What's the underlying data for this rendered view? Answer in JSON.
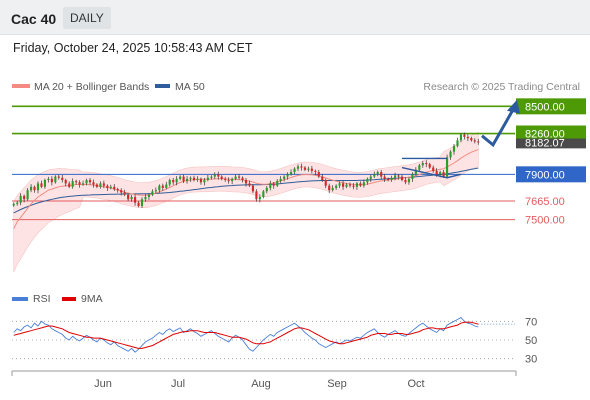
{
  "header": {
    "instrument": "Cac 40",
    "period_tab": "DAILY",
    "datetime": "Friday, October 24, 2025 10:58:43 AM CET"
  },
  "legend": {
    "items": [
      {
        "label": "MA 20 + Bollinger Bands",
        "color": "#f28b82"
      },
      {
        "label": "MA 50",
        "color": "#2f5d9b"
      }
    ],
    "credit": "Research © 2025 Trading Central"
  },
  "rsi_legend": {
    "items": [
      {
        "label": "RSI",
        "color": "#4a7fd6"
      },
      {
        "label": "9MA",
        "color": "#e00000"
      }
    ]
  },
  "colors": {
    "resistance": "#4d9a06",
    "pivot": "#2f66c8",
    "support": "#e35d5d",
    "candle_up": "#2a9d2a",
    "candle_down": "#d62828",
    "band_fill": "#fde3e3",
    "arrow": "#2b5b9e"
  },
  "chart_data": [
    {
      "type": "candlestick",
      "ylim": [
        6950,
        8600
      ],
      "months": [
        "Jun",
        "Jul",
        "Aug",
        "Sep",
        "Oct"
      ],
      "levels": [
        {
          "value": 8500,
          "label": "8500.00",
          "kind": "resistance"
        },
        {
          "value": 8260,
          "label": "8260.00",
          "kind": "resistance"
        },
        {
          "value": 7900,
          "label": "7900.00",
          "kind": "pivot"
        },
        {
          "value": 7665,
          "label": "7665.00",
          "kind": "support"
        },
        {
          "value": 7500,
          "label": "7500.00",
          "kind": "support"
        }
      ],
      "current_price_label": "8182.07",
      "series": [
        {
          "name": "Close",
          "values": [
            7640,
            7650,
            7710,
            7680,
            7760,
            7790,
            7760,
            7820,
            7790,
            7850,
            7860,
            7830,
            7880,
            7870,
            7850,
            7820,
            7790,
            7840,
            7830,
            7810,
            7820,
            7850,
            7830,
            7810,
            7790,
            7820,
            7800,
            7780,
            7790,
            7770,
            7760,
            7740,
            7720,
            7680,
            7700,
            7650,
            7620,
            7680,
            7700,
            7720,
            7750,
            7760,
            7800,
            7780,
            7810,
            7850,
            7830,
            7860,
            7880,
            7840,
            7860,
            7870,
            7850,
            7860,
            7830,
            7850,
            7870,
            7880,
            7900,
            7880,
            7860,
            7850,
            7840,
            7860,
            7880,
            7870,
            7850,
            7820,
            7800,
            7750,
            7680,
            7700,
            7750,
            7780,
            7820,
            7800,
            7840,
            7860,
            7880,
            7900,
            7920,
            7950,
            7970,
            7960,
            7940,
            7950,
            7930,
            7920,
            7880,
            7850,
            7800,
            7760,
            7780,
            7800,
            7820,
            7790,
            7810,
            7800,
            7790,
            7820,
            7800,
            7830,
            7860,
            7880,
            7900,
            7920,
            7880,
            7860,
            7850,
            7870,
            7890,
            7880,
            7850,
            7830,
            7860,
            7900,
            7940,
            7980,
            8000,
            7990,
            7960,
            7930,
            7900,
            7920,
            7880,
            8050,
            8100,
            8150,
            8200,
            8250,
            8230,
            8220,
            8200,
            8190,
            8182
          ]
        },
        {
          "name": "MA 20",
          "values": [
            7420,
            7480,
            7520,
            7560,
            7600,
            7640,
            7670,
            7700,
            7720,
            7740,
            7760,
            7770,
            7780,
            7790,
            7795,
            7800,
            7800,
            7805,
            7810,
            7810,
            7810,
            7810,
            7808,
            7805,
            7800,
            7795,
            7790,
            7785,
            7778,
            7770,
            7762,
            7752,
            7742,
            7735,
            7728,
            7722,
            7718,
            7716,
            7716,
            7720,
            7726,
            7734,
            7745,
            7758,
            7770,
            7785,
            7800,
            7815,
            7828,
            7838,
            7845,
            7850,
            7853,
            7855,
            7856,
            7856,
            7857,
            7858,
            7860,
            7861,
            7861,
            7860,
            7858,
            7856,
            7855,
            7853,
            7850,
            7846,
            7840,
            7832,
            7822,
            7815,
            7812,
            7813,
            7818,
            7825,
            7833,
            7842,
            7852,
            7862,
            7872,
            7882,
            7890,
            7896,
            7898,
            7898,
            7896,
            7892,
            7886,
            7878,
            7868,
            7858,
            7848,
            7840,
            7832,
            7826,
            7820,
            7815,
            7810,
            7808,
            7808,
            7810,
            7814,
            7820,
            7828,
            7836,
            7842,
            7846,
            7850,
            7854,
            7858,
            7862,
            7866,
            7870,
            7874,
            7880,
            7888,
            7898,
            7910,
            7920,
            7928,
            7934,
            7938,
            7944,
            7950,
            7965,
            7982,
            8000,
            8020,
            8042,
            8062,
            8080,
            8095,
            8108,
            8118
          ]
        },
        {
          "name": "MA 50",
          "values": [
            7560,
            7575,
            7590,
            7603,
            7615,
            7627,
            7638,
            7648,
            7657,
            7665,
            7673,
            7680,
            7686,
            7692,
            7697,
            7701,
            7705,
            7708,
            7711,
            7713,
            7715,
            7717,
            7718,
            7719,
            7720,
            7721,
            7722,
            7723,
            7724,
            7725,
            7726,
            7726,
            7727,
            7727,
            7727,
            7727,
            7727,
            7728,
            7728,
            7729,
            7730,
            7731,
            7733,
            7735,
            7737,
            7740,
            7743,
            7746,
            7750,
            7753,
            7757,
            7761,
            7765,
            7769,
            7773,
            7777,
            7781,
            7784,
            7788,
            7791,
            7794,
            7797,
            7799,
            7801,
            7803,
            7805,
            7806,
            7807,
            7808,
            7808,
            7808,
            7808,
            7809,
            7810,
            7811,
            7813,
            7815,
            7818,
            7821,
            7824,
            7827,
            7830,
            7833,
            7836,
            7838,
            7840,
            7842,
            7844,
            7845,
            7846,
            7846,
            7846,
            7846,
            7846,
            7846,
            7846,
            7846,
            7846,
            7846,
            7846,
            7847,
            7848,
            7849,
            7851,
            7853,
            7855,
            7857,
            7859,
            7861,
            7863,
            7865,
            7867,
            7869,
            7871,
            7873,
            7875,
            7878,
            7881,
            7884,
            7887,
            7890,
            7893,
            7896,
            7899,
            7902,
            7906,
            7910,
            7915,
            7920,
            7926,
            7932,
            7938,
            7944,
            7950,
            7956
          ]
        }
      ]
    },
    {
      "type": "line",
      "title": "RSI",
      "ylim": [
        20,
        80
      ],
      "ticks": [
        "70",
        "50",
        "30"
      ],
      "series": [
        {
          "name": "RSI",
          "values": [
            58,
            62,
            60,
            64,
            66,
            63,
            68,
            65,
            70,
            67,
            66,
            62,
            60,
            58,
            56,
            52,
            50,
            54,
            51,
            49,
            52,
            55,
            53,
            50,
            48,
            52,
            50,
            47,
            45,
            48,
            44,
            42,
            40,
            38,
            41,
            37,
            40,
            44,
            48,
            50,
            52,
            55,
            58,
            56,
            60,
            62,
            59,
            61,
            63,
            58,
            60,
            62,
            59,
            57,
            54,
            56,
            58,
            60,
            57,
            54,
            52,
            50,
            48,
            52,
            55,
            53,
            50,
            45,
            40,
            38,
            42,
            46,
            50,
            53,
            56,
            54,
            58,
            60,
            62,
            64,
            66,
            68,
            65,
            62,
            58,
            55,
            52,
            50,
            46,
            44,
            42,
            44,
            46,
            48,
            46,
            48,
            50,
            49,
            51,
            53,
            52,
            55,
            58,
            60,
            62,
            58,
            55,
            53,
            56,
            58,
            60,
            57,
            55,
            54,
            57,
            60,
            63,
            66,
            68,
            65,
            62,
            60,
            58,
            62,
            60,
            66,
            68,
            70,
            72,
            74,
            70,
            68,
            67,
            65,
            64
          ]
        },
        {
          "name": "9MA",
          "values": [
            55,
            56,
            57,
            58,
            59,
            60,
            61,
            62,
            63,
            64,
            65,
            65,
            64,
            63,
            62,
            60,
            58,
            57,
            56,
            55,
            54,
            53,
            53,
            52,
            52,
            52,
            51,
            50,
            49,
            48,
            47,
            46,
            45,
            44,
            43,
            42,
            41,
            41,
            42,
            43,
            44,
            46,
            48,
            50,
            52,
            54,
            56,
            57,
            58,
            59,
            59,
            60,
            60,
            60,
            59,
            58,
            58,
            58,
            58,
            57,
            56,
            55,
            54,
            53,
            53,
            53,
            52,
            51,
            49,
            47,
            46,
            46,
            46,
            47,
            48,
            50,
            52,
            54,
            56,
            58,
            60,
            62,
            63,
            63,
            62,
            61,
            59,
            57,
            55,
            53,
            51,
            49,
            48,
            47,
            46,
            46,
            47,
            48,
            49,
            50,
            51,
            52,
            53,
            55,
            56,
            57,
            57,
            57,
            56,
            56,
            57,
            57,
            57,
            56,
            56,
            57,
            58,
            59,
            61,
            62,
            63,
            63,
            62,
            62,
            62,
            63,
            64,
            65,
            66,
            68,
            69,
            69,
            69,
            68,
            67
          ]
        }
      ]
    }
  ]
}
